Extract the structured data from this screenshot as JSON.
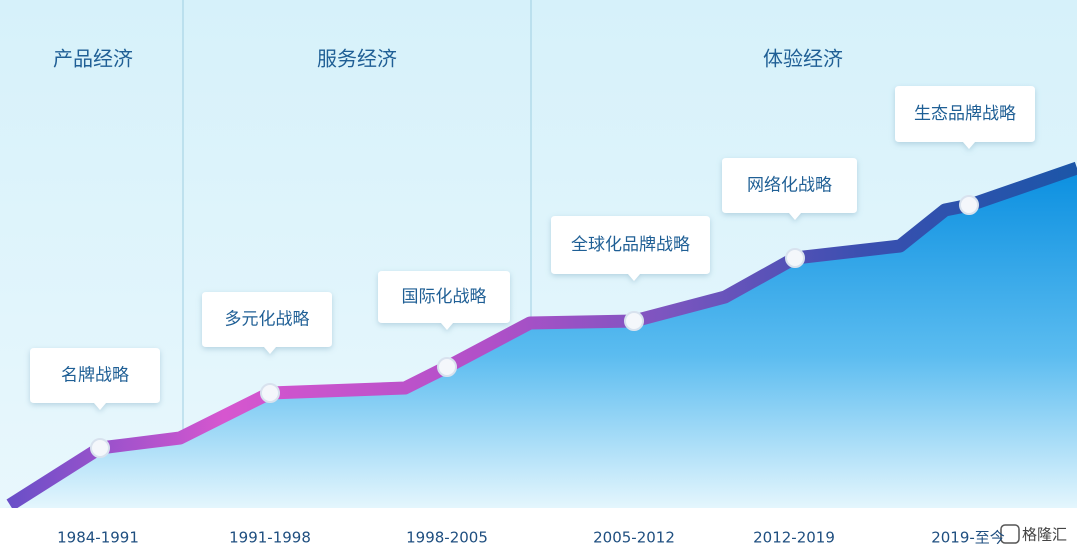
{
  "sections": [
    {
      "title": "产品经济"
    },
    {
      "title": "服务经济"
    },
    {
      "title": "体验经济"
    }
  ],
  "stages": [
    {
      "label": "名牌战略",
      "period": "1984-1991"
    },
    {
      "label": "多元化战略",
      "period": "1991-1998"
    },
    {
      "label": "国际化战略",
      "period": "1998-2005"
    },
    {
      "label": "全球化品牌战略",
      "period": "2005-2012"
    },
    {
      "label": "网络化战略",
      "period": "2012-2019"
    },
    {
      "label": "生态品牌战略",
      "period": "2019-至今"
    }
  ],
  "watermark": "格隆汇"
}
